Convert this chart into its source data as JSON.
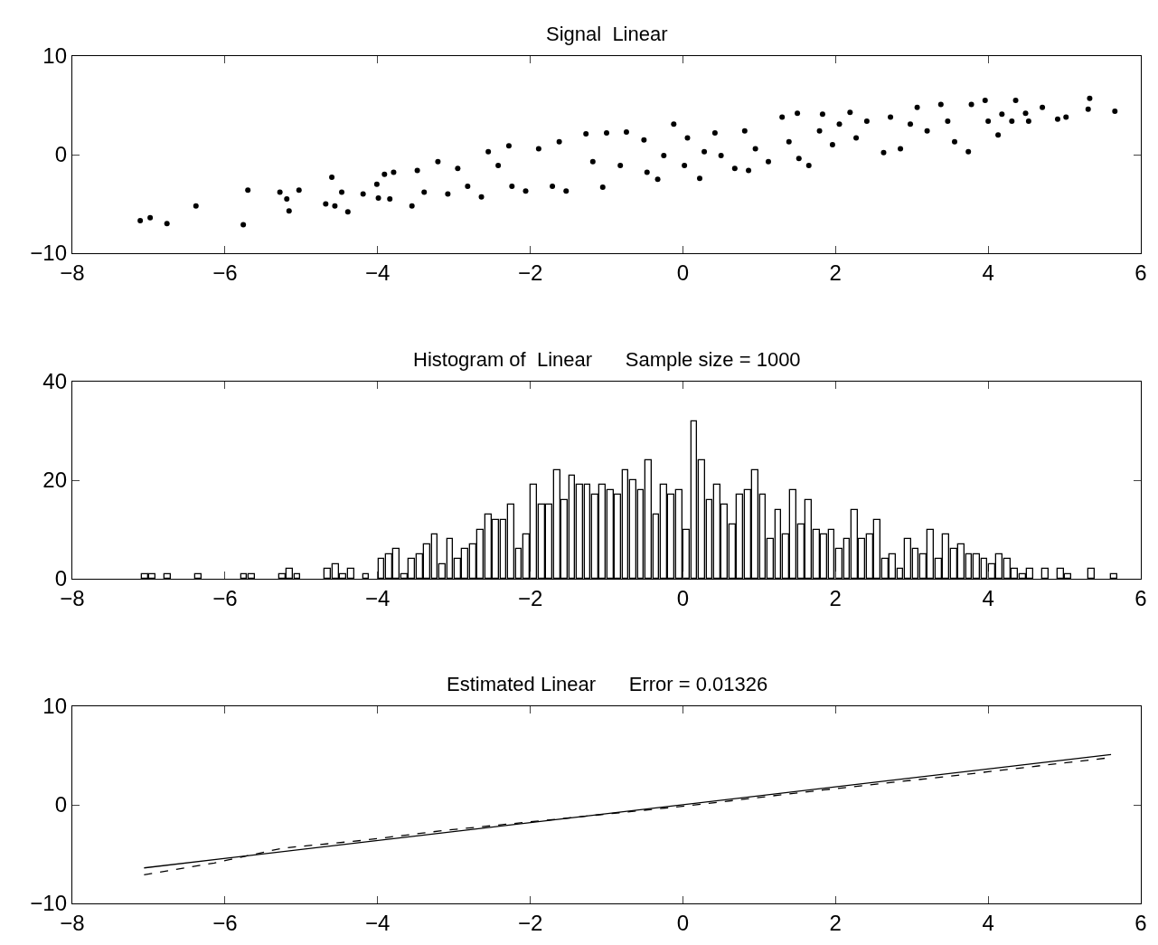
{
  "chart_data": [
    {
      "type": "scatter",
      "title": "Signal  Linear",
      "color": "#000000",
      "marker": "circle",
      "grid": false,
      "xlim": [
        -8,
        6
      ],
      "xticks": [
        -8,
        -6,
        -4,
        -2,
        0,
        2,
        4,
        6
      ],
      "ylim": [
        -10,
        10
      ],
      "yticks": [
        -10,
        0,
        10
      ],
      "x": [
        -7.11,
        -6.98,
        -6.76,
        -6.38,
        -5.76,
        -5.7,
        -5.28,
        -5.19,
        -5.16,
        -5.03,
        -4.68,
        -4.6,
        -4.56,
        -4.47,
        -4.39,
        -4.19,
        -4.01,
        -3.99,
        -3.91,
        -3.84,
        -3.79,
        -3.55,
        -3.48,
        -3.39,
        -3.21,
        -3.08,
        -2.95,
        -2.82,
        -2.64,
        -2.55,
        -2.42,
        -2.28,
        -2.24,
        -2.06,
        -1.89,
        -1.71,
        -1.62,
        -1.53,
        -1.27,
        -1.18,
        -1.05,
        -1.0,
        -0.82,
        -0.74,
        -0.51,
        -0.47,
        -0.33,
        -0.25,
        -0.12,
        0.02,
        0.06,
        0.22,
        0.28,
        0.42,
        0.5,
        0.68,
        0.81,
        0.86,
        0.95,
        1.12,
        1.3,
        1.39,
        1.5,
        1.52,
        1.65,
        1.79,
        1.83,
        1.96,
        2.05,
        2.19,
        2.27,
        2.41,
        2.63,
        2.72,
        2.85,
        2.98,
        3.07,
        3.2,
        3.38,
        3.47,
        3.56,
        3.74,
        3.78,
        3.96,
        4.0,
        4.13,
        4.18,
        4.36,
        4.31,
        4.49,
        4.53,
        4.71,
        4.91,
        5.02,
        5.31,
        5.33,
        5.66
      ],
      "values": [
        -6.7,
        -6.4,
        -7.0,
        -5.2,
        -7.1,
        -3.6,
        -3.8,
        -4.5,
        -5.7,
        -3.6,
        -5.0,
        -2.3,
        -5.2,
        -3.8,
        -5.8,
        -4.0,
        -3.0,
        -4.4,
        -2.0,
        -4.5,
        -1.8,
        -5.2,
        -1.6,
        -3.8,
        -0.7,
        -4.0,
        -1.4,
        -3.2,
        -4.3,
        0.3,
        -1.1,
        0.9,
        -3.2,
        -3.7,
        0.6,
        -3.2,
        1.3,
        -3.7,
        2.1,
        -0.7,
        -3.3,
        2.2,
        -1.1,
        2.3,
        1.5,
        -1.8,
        -2.5,
        -0.1,
        3.1,
        -1.1,
        1.7,
        -2.4,
        0.3,
        2.2,
        -0.1,
        -1.4,
        2.4,
        -1.6,
        0.6,
        -0.7,
        3.8,
        1.3,
        4.2,
        -0.4,
        -1.1,
        2.4,
        4.1,
        1.0,
        3.1,
        4.3,
        1.7,
        3.4,
        0.2,
        3.8,
        0.6,
        3.1,
        4.8,
        2.4,
        5.1,
        3.4,
        1.3,
        0.3,
        5.1,
        5.5,
        3.4,
        2.0,
        4.1,
        5.5,
        3.4,
        4.2,
        3.4,
        4.8,
        3.6,
        3.8,
        4.6,
        5.7,
        4.4
      ]
    },
    {
      "type": "histogram",
      "title": "Histogram of  Linear      Sample size = 1000",
      "color": "#ffffff",
      "grid": false,
      "xlim": [
        -8,
        6
      ],
      "xticks": [
        -8,
        -6,
        -4,
        -2,
        0,
        2,
        4,
        6
      ],
      "ylim": [
        0,
        40
      ],
      "yticks": [
        0,
        20,
        40
      ],
      "bins": [
        -7.1,
        -7.0,
        -6.9,
        -6.8,
        -6.7,
        -6.6,
        -6.5,
        -6.4,
        -6.3,
        -6.2,
        -6.1,
        -6.0,
        -5.9,
        -5.8,
        -5.7,
        -5.6,
        -5.5,
        -5.4,
        -5.3,
        -5.2,
        -5.1,
        -5.0,
        -4.9,
        -4.8,
        -4.7,
        -4.6,
        -4.5,
        -4.4,
        -4.3,
        -4.2,
        -4.1,
        -4.0,
        -3.9,
        -3.8,
        -3.7,
        -3.6,
        -3.5,
        -3.4,
        -3.3,
        -3.2,
        -3.1,
        -3.0,
        -2.9,
        -2.8,
        -2.7,
        -2.6,
        -2.5,
        -2.4,
        -2.3,
        -2.2,
        -2.1,
        -2.0,
        -1.9,
        -1.8,
        -1.7,
        -1.6,
        -1.5,
        -1.4,
        -1.3,
        -1.2,
        -1.1,
        -1.0,
        -0.9,
        -0.8,
        -0.7,
        -0.6,
        -0.5,
        -0.4,
        -0.3,
        -0.2,
        -0.1,
        0.0,
        0.1,
        0.2,
        0.3,
        0.4,
        0.5,
        0.6,
        0.7,
        0.8,
        0.9,
        1.0,
        1.1,
        1.2,
        1.3,
        1.4,
        1.5,
        1.6,
        1.7,
        1.8,
        1.9,
        2.0,
        2.1,
        2.2,
        2.3,
        2.4,
        2.5,
        2.6,
        2.7,
        2.8,
        2.9,
        3.0,
        3.1,
        3.2,
        3.3,
        3.4,
        3.5,
        3.6,
        3.7,
        3.8,
        3.9,
        4.0,
        4.1,
        4.2,
        4.3,
        4.4,
        4.5,
        4.6,
        4.7,
        4.8,
        4.9,
        5.0,
        5.1,
        5.2,
        5.3,
        5.4,
        5.5,
        5.6,
        5.7
      ],
      "values": [
        1,
        1,
        0,
        1,
        0,
        0,
        0,
        1,
        0,
        0,
        0,
        0,
        0,
        1,
        1,
        0,
        0,
        0,
        1,
        2,
        1,
        0,
        0,
        0,
        2,
        3,
        1,
        2,
        0,
        1,
        0,
        4,
        5,
        6,
        1,
        4,
        5,
        7,
        9,
        3,
        8,
        4,
        6,
        7,
        10,
        13,
        12,
        12,
        15,
        6,
        9,
        19,
        15,
        15,
        22,
        16,
        21,
        19,
        19,
        17,
        19,
        18,
        17,
        22,
        20,
        18,
        24,
        13,
        19,
        17,
        18,
        10,
        32,
        24,
        16,
        19,
        15,
        11,
        17,
        18,
        22,
        17,
        8,
        14,
        9,
        18,
        11,
        16,
        10,
        9,
        10,
        6,
        8,
        14,
        8,
        9,
        12,
        4,
        5,
        2,
        8,
        6,
        5,
        10,
        4,
        9,
        6,
        7,
        5,
        5,
        4,
        3,
        5,
        4,
        2,
        1,
        2,
        0,
        2,
        0,
        2,
        1,
        0,
        0,
        2,
        0,
        0,
        1
      ]
    },
    {
      "type": "line",
      "title": "Estimated Linear      Error = 0.01326",
      "grid": false,
      "marker": "none",
      "xlim": [
        -8,
        6
      ],
      "xticks": [
        -8,
        -6,
        -4,
        -2,
        0,
        2,
        4,
        6
      ],
      "ylim": [
        -10,
        10
      ],
      "yticks": [
        -10,
        0,
        10
      ],
      "series": [
        {
          "color": "#000000",
          "line_style": "solid",
          "x": [
            -7.06,
            5.61
          ],
          "values": [
            -6.4,
            5.1
          ]
        },
        {
          "color": "#000000",
          "line_style": "dashed",
          "x": [
            -7.06,
            -6.14,
            -5.25,
            -4.19,
            -3.13,
            -1.71,
            0.06,
            1.83,
            3.6,
            5.61
          ],
          "values": [
            -7.1,
            -5.9,
            -4.4,
            -3.6,
            -2.6,
            -1.5,
            -0.1,
            1.5,
            3.0,
            4.8
          ]
        }
      ]
    }
  ]
}
